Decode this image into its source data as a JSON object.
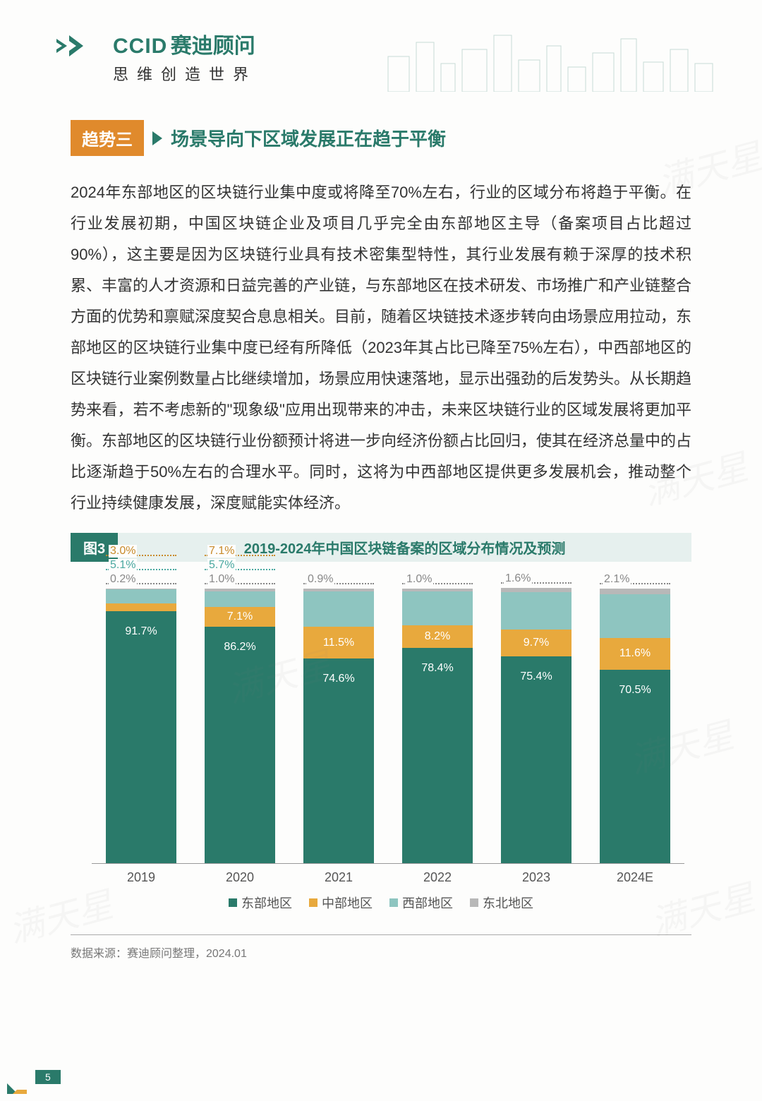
{
  "brand": {
    "latin": "CCID",
    "cn": "赛迪顾问",
    "tagline": "思维创造世界"
  },
  "trend": {
    "badge": "趋势三",
    "title": "场景导向下区域发展正在趋于平衡"
  },
  "body": "2024年东部地区的区块链行业集中度或将降至70%左右，行业的区域分布将趋于平衡。在行业发展初期，中国区块链企业及项目几乎完全由东部地区主导（备案项目占比超过90%），这主要是因为区块链行业具有技术密集型特性，其行业发展有赖于深厚的技术积累、丰富的人才资源和日益完善的产业链，与东部地区在技术研发、市场推广和产业链整合方面的优势和禀赋深度契合息息相关。目前，随着区块链技术逐步转向由场景应用拉动，东部地区的区块链行业集中度已经有所降低（2023年其占比已降至75%左右），中西部地区的区块链行业案例数量占比继续增加，场景应用快速落地，显示出强劲的后发势头。从长期趋势来看，若不考虑新的\"现象级\"应用出现带来的冲击，未来区块链行业的区域发展将更加平衡。东部地区的区块链行业份额预计将进一步向经济份额占比回归，使其在经济总量中的占比逐渐趋于50%左右的合理水平。同时，这将为中西部地区提供更多发展机会，推动整个行业持续健康发展，深度赋能实体经济。",
  "chart": {
    "tag": "图3",
    "title": "2019-2024年中国区块链备案的区域分布情况及预测",
    "type": "stacked-bar-100",
    "categories": [
      "2019",
      "2020",
      "2021",
      "2022",
      "2023",
      "2024E"
    ],
    "series": [
      {
        "name": "东部地区",
        "color": "#2a7a6a",
        "label_color": "#ffffff"
      },
      {
        "name": "中部地区",
        "color": "#e8a93d"
      },
      {
        "name": "西部地区",
        "color": "#8ec5c0"
      },
      {
        "name": "东北地区",
        "color": "#b8b8b8"
      }
    ],
    "data": [
      {
        "east": 91.7,
        "central": 3.0,
        "west": 5.1,
        "ne": 0.2
      },
      {
        "east": 86.2,
        "central": 7.1,
        "west": 5.7,
        "ne": 1.0
      },
      {
        "east": 74.6,
        "central": 11.5,
        "west": 12.9,
        "ne": 0.9
      },
      {
        "east": 78.4,
        "central": 8.2,
        "west": 12.4,
        "ne": 1.0
      },
      {
        "east": 75.4,
        "central": 9.7,
        "west": 13.5,
        "ne": 1.6
      },
      {
        "east": 70.5,
        "central": 11.6,
        "west": 15.8,
        "ne": 2.1
      }
    ],
    "legend_labels": [
      "东部地区",
      "中部地区",
      "西部地区",
      "东北地区"
    ]
  },
  "source": "数据来源：赛迪顾问整理，2024.01",
  "page": "5",
  "watermark": "满天星"
}
